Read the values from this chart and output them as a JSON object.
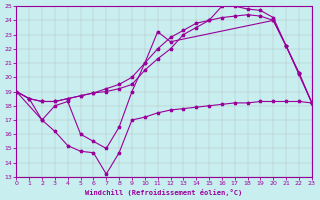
{
  "xlabel": "Windchill (Refroidissement éolien,°C)",
  "bg_color": "#c8eef0",
  "line_color": "#990099",
  "grid_color": "#b0b0b0",
  "xlim": [
    0,
    23
  ],
  "ylim": [
    13,
    25
  ],
  "xticks": [
    0,
    1,
    2,
    3,
    4,
    5,
    6,
    7,
    8,
    9,
    10,
    11,
    12,
    13,
    14,
    15,
    16,
    17,
    18,
    19,
    20,
    21,
    22,
    23
  ],
  "yticks": [
    13,
    14,
    15,
    16,
    17,
    18,
    19,
    20,
    21,
    22,
    23,
    24,
    25
  ],
  "curve1_x": [
    0,
    1,
    2,
    3,
    4,
    5,
    6,
    7,
    8,
    9,
    10,
    11,
    12,
    13,
    14,
    15,
    16,
    17,
    18,
    19,
    20,
    21,
    22,
    23
  ],
  "curve1_y": [
    19.0,
    18.5,
    18.3,
    18.3,
    18.5,
    18.7,
    18.9,
    19.2,
    19.5,
    20.0,
    21.0,
    22.0,
    22.8,
    23.3,
    23.8,
    24.0,
    24.2,
    24.3,
    24.4,
    24.3,
    24.0,
    22.2,
    20.2,
    18.2
  ],
  "curve2_x": [
    0,
    1,
    2,
    3,
    4,
    5,
    6,
    7,
    8,
    9,
    10,
    11,
    12,
    13,
    14,
    15,
    16,
    17,
    18,
    19,
    20,
    21,
    22,
    23
  ],
  "curve2_y": [
    19.0,
    18.5,
    18.3,
    18.3,
    18.5,
    18.7,
    18.9,
    19.0,
    19.2,
    19.5,
    20.5,
    21.3,
    22.0,
    23.0,
    23.5,
    24.0,
    25.0,
    25.0,
    24.8,
    24.7,
    24.2,
    22.2,
    20.3,
    18.2
  ],
  "curve3_x": [
    0,
    2,
    3,
    4,
    5,
    6,
    7,
    8,
    9,
    10,
    11,
    12,
    20,
    21,
    22,
    23
  ],
  "curve3_y": [
    19.0,
    17.0,
    18.0,
    18.3,
    16.0,
    15.5,
    15.0,
    16.5,
    19.0,
    21.0,
    23.2,
    22.5,
    24.0,
    22.2,
    20.3,
    18.2
  ],
  "curve4_x": [
    0,
    1,
    2,
    3,
    4,
    5,
    6,
    7,
    8,
    9,
    10,
    11,
    12,
    13,
    14,
    15,
    16,
    17,
    18,
    19,
    20,
    21,
    22,
    23
  ],
  "curve4_y": [
    19.0,
    18.5,
    17.0,
    16.2,
    15.2,
    14.8,
    14.7,
    13.2,
    14.7,
    17.0,
    17.2,
    17.5,
    17.7,
    17.8,
    17.9,
    18.0,
    18.1,
    18.2,
    18.2,
    18.3,
    18.3,
    18.3,
    18.3,
    18.2
  ]
}
